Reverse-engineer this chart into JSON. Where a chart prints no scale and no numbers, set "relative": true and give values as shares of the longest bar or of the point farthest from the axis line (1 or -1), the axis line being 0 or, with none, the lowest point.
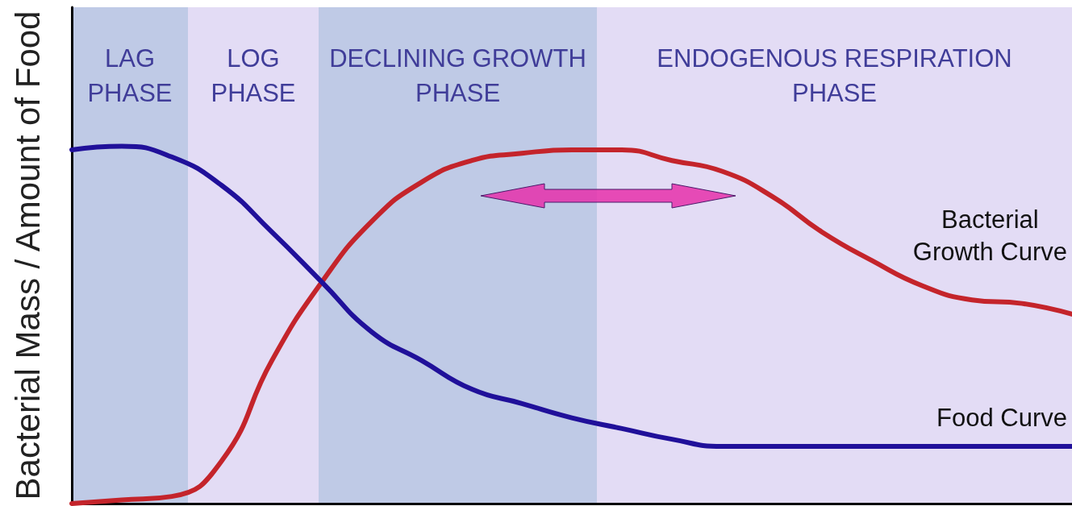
{
  "chart_data": {
    "type": "line",
    "relative": true,
    "ylabel": "Bacterial Mass / Amount of Food",
    "categories": [
      null,
      null,
      null,
      null,
      null,
      null,
      null,
      null,
      null,
      null,
      null,
      null,
      null,
      null,
      null,
      null,
      null,
      null,
      null,
      null,
      null
    ],
    "series": [
      {
        "name": "Bacterial Growth Curve",
        "color": "#c4242b",
        "values": [
          0.0,
          0.01,
          0.02,
          0.12,
          0.4,
          0.62,
          0.79,
          0.9,
          0.96,
          0.98,
          0.99,
          0.99,
          0.96,
          0.93,
          0.86,
          0.76,
          0.68,
          0.61,
          0.57,
          0.56,
          0.53
        ]
      },
      {
        "name": "Food Curve",
        "color": "#20109a",
        "values": [
          0.99,
          1.0,
          0.97,
          0.89,
          0.76,
          0.62,
          0.48,
          0.4,
          0.32,
          0.28,
          0.24,
          0.21,
          0.18,
          0.16,
          0.16,
          0.16,
          0.16,
          0.16,
          0.16,
          0.16,
          0.16
        ]
      }
    ],
    "annotations": [
      "LAG PHASE",
      "LOG PHASE",
      "DECLINING GROWTH PHASE",
      "ENDOGENOUS RESPIRATION PHASE"
    ],
    "marker": "none",
    "line_style": "solid",
    "tick_labels": false
  }
}
